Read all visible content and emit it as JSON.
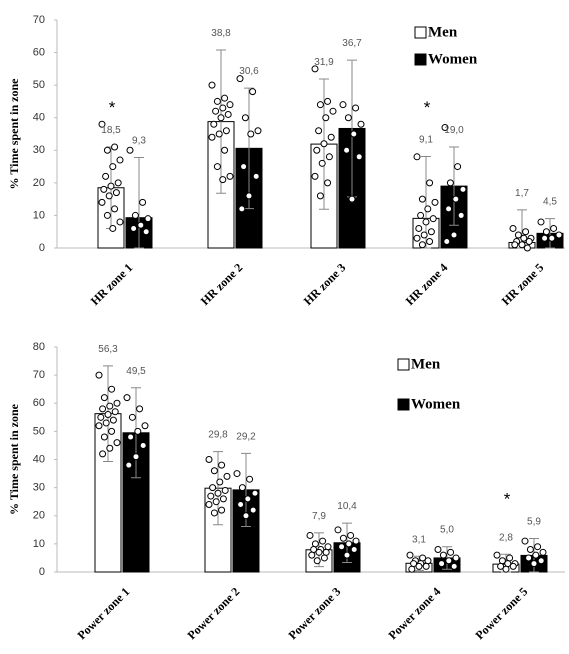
{
  "chart_data": [
    {
      "type": "bar",
      "y_label": "% Time spent in zone",
      "categories": [
        "HR zone 1",
        "HR zone 2",
        "HR zone 3",
        "HR zone 4",
        "HR zone 5"
      ],
      "ylim": [
        0,
        70
      ],
      "yticks": [
        0,
        10,
        20,
        30,
        40,
        50,
        60,
        70
      ],
      "legend": "upper right",
      "significance": [
        "*",
        null,
        null,
        "*",
        null
      ],
      "series": [
        {
          "name": "Men",
          "color": "#ffffff",
          "values": [
            18.5,
            38.8,
            31.9,
            9.1,
            1.7
          ],
          "value_labels": [
            "18,5",
            "38,8",
            "31,9",
            "9,1",
            "1,7"
          ],
          "errors": [
            12.5,
            22,
            20,
            19,
            10
          ],
          "points": [
            [
              38,
              31,
              30,
              27,
              25,
              22,
              20,
              19,
              18,
              17,
              16,
              14,
              12,
              10,
              8,
              6
            ],
            [
              50,
              46,
              45,
              44,
              43,
              42,
              41,
              40,
              38,
              36,
              35,
              34,
              30,
              25,
              22,
              21
            ],
            [
              55,
              45,
              44,
              42,
              40,
              36,
              34,
              32,
              30,
              28,
              26,
              22,
              20,
              16
            ],
            [
              28,
              20,
              15,
              14,
              12,
              10,
              9,
              8,
              6,
              5,
              4,
              3,
              2,
              1
            ],
            [
              6,
              5,
              4,
              3,
              3,
              2,
              2,
              1,
              1,
              0
            ]
          ]
        },
        {
          "name": "Women",
          "color": "#000000",
          "values": [
            9.3,
            30.6,
            36.7,
            19.0,
            4.5
          ],
          "value_labels": [
            "9,3",
            "30,6",
            "36,7",
            "19,0",
            "4,5"
          ],
          "errors": [
            18.5,
            18.5,
            21,
            12,
            4.5
          ],
          "points": [
            [
              30,
              14,
              10,
              9,
              7,
              6,
              5
            ],
            [
              52,
              48,
              40,
              36,
              35,
              25,
              22,
              16,
              12
            ],
            [
              44,
              43,
              40,
              38,
              35,
              30,
              28,
              15
            ],
            [
              37,
              25,
              20,
              18,
              15,
              12,
              10,
              4,
              2
            ],
            [
              8,
              6,
              5,
              4,
              3,
              3
            ]
          ]
        }
      ]
    },
    {
      "type": "bar",
      "y_label": "% Time spent in zone",
      "categories": [
        "Power zone 1",
        "Power zone 2",
        "Power zone 3",
        "Power zone 4",
        "Power zone 5"
      ],
      "ylim": [
        0,
        80
      ],
      "yticks": [
        0,
        10,
        20,
        30,
        40,
        50,
        60,
        70,
        80
      ],
      "legend": "upper right",
      "significance": [
        null,
        null,
        null,
        null,
        "*"
      ],
      "series": [
        {
          "name": "Men",
          "color": "#ffffff",
          "values": [
            56.3,
            29.8,
            7.9,
            3.1,
            2.8
          ],
          "value_labels": [
            "56,3",
            "29,8",
            "7,9",
            "3,1",
            "2,8"
          ],
          "errors": [
            17,
            13,
            6,
            2.5,
            3.5
          ],
          "points": [
            [
              70,
              65,
              62,
              60,
              59,
              58,
              57,
              56,
              55,
              54,
              53,
              52,
              50,
              48,
              46,
              44,
              42
            ],
            [
              40,
              38,
              36,
              34,
              32,
              30,
              29,
              28,
              27,
              26,
              25,
              24,
              22,
              21
            ],
            [
              13,
              11,
              10,
              9,
              8,
              8,
              7,
              7,
              6,
              5,
              4
            ],
            [
              6,
              5,
              4,
              4,
              3,
              3,
              2,
              2,
              1
            ],
            [
              6,
              5,
              4,
              3,
              3,
              2,
              2,
              1
            ]
          ]
        },
        {
          "name": "Women",
          "color": "#000000",
          "values": [
            49.5,
            29.2,
            10.4,
            5.0,
            5.9
          ],
          "value_labels": [
            "49,5",
            "29,2",
            "10,4",
            "5,0",
            "5,9"
          ],
          "errors": [
            16,
            13,
            7,
            4,
            6
          ],
          "points": [
            [
              62,
              58,
              55,
              52,
              50,
              48,
              45,
              41,
              38
            ],
            [
              35,
              33,
              30,
              28,
              26,
              24,
              22,
              20
            ],
            [
              15,
              13,
              12,
              11,
              10,
              9,
              8,
              6
            ],
            [
              8,
              7,
              6,
              5,
              4,
              3,
              2
            ],
            [
              11,
              9,
              8,
              7,
              6,
              5,
              4,
              3
            ]
          ]
        }
      ]
    }
  ]
}
